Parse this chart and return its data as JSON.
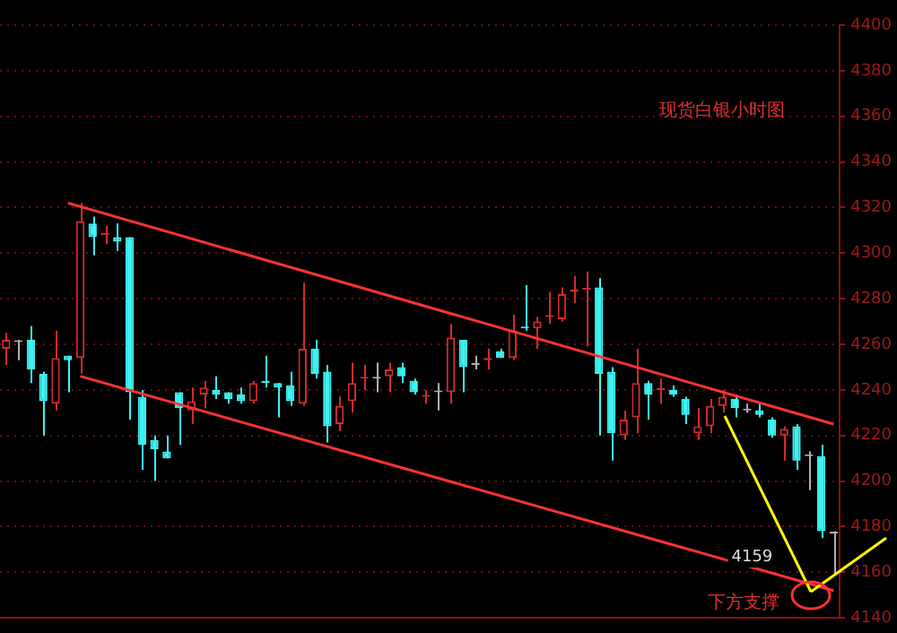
{
  "chart_data": {
    "type": "candlestick",
    "title": "现货白银小时图",
    "categories": [
      null,
      null,
      null,
      null,
      null,
      null,
      null,
      null,
      null,
      null,
      null,
      null,
      null,
      null,
      null,
      null,
      null,
      null,
      null,
      null,
      null,
      null,
      null,
      null,
      null,
      null,
      null,
      null,
      null,
      null,
      null,
      null,
      null,
      null,
      null,
      null,
      null,
      null,
      null,
      null,
      null,
      null,
      null,
      null,
      null,
      null,
      null,
      null,
      null,
      null,
      null,
      null,
      null,
      null,
      null,
      null,
      null,
      null,
      null,
      null,
      null,
      null,
      null,
      null,
      null,
      null,
      null,
      null
    ],
    "ohlc": [
      [
        4258,
        4265,
        4251,
        4262
      ],
      [
        4261,
        4262,
        4253,
        4261
      ],
      [
        4262,
        4268,
        4243,
        4249
      ],
      [
        4247,
        4248,
        4220,
        4235
      ],
      [
        4234,
        4266,
        4231,
        4254
      ],
      [
        4255,
        4255,
        4239,
        4253
      ],
      [
        4254,
        4322,
        4247,
        4314
      ],
      [
        4313,
        4316,
        4299,
        4307
      ],
      [
        4308,
        4312,
        4304,
        4308
      ],
      [
        4307,
        4313,
        4301,
        4305
      ],
      [
        4307,
        4307,
        4227,
        4239
      ],
      [
        4237,
        4240,
        4205,
        4216
      ],
      [
        4218,
        4220,
        4200,
        4214
      ],
      [
        4213,
        4220,
        4210,
        4210
      ],
      [
        4239,
        4239,
        4216,
        4232
      ],
      [
        4231,
        4241,
        4225,
        4235
      ],
      [
        4238,
        4244,
        4232,
        4241
      ],
      [
        4240,
        4246,
        4236,
        4238
      ],
      [
        4239,
        4239,
        4234,
        4236
      ],
      [
        4238,
        4241,
        4234,
        4235
      ],
      [
        4235,
        4244,
        4234,
        4243
      ],
      [
        4244,
        4255,
        4241,
        4243
      ],
      [
        4243,
        4243,
        4228,
        4241
      ],
      [
        4242,
        4248,
        4233,
        4235
      ],
      [
        4234,
        4287,
        4233,
        4258
      ],
      [
        4258,
        4262,
        4245,
        4247
      ],
      [
        4248,
        4251,
        4217,
        4224
      ],
      [
        4225,
        4237,
        4222,
        4233
      ],
      [
        4235,
        4252,
        4230,
        4243
      ],
      [
        4245,
        4251,
        4240,
        4245
      ],
      [
        4245,
        4252,
        4239,
        4245
      ],
      [
        4246,
        4252,
        4239,
        4249
      ],
      [
        4250,
        4252,
        4243,
        4246
      ],
      [
        4244,
        4245,
        4238,
        4239
      ],
      [
        4237,
        4240,
        4234,
        4237
      ],
      [
        4239,
        4243,
        4231,
        4239
      ],
      [
        4239,
        4269,
        4234,
        4263
      ],
      [
        4262,
        4262,
        4239,
        4250
      ],
      [
        4251,
        4255,
        4249,
        4251
      ],
      [
        4253,
        4258,
        4249,
        4254
      ],
      [
        4257,
        4258,
        4254,
        4254
      ],
      [
        4254,
        4273,
        4253,
        4266
      ],
      [
        4267,
        4286,
        4266,
        4267
      ],
      [
        4267,
        4272,
        4258,
        4270
      ],
      [
        4272,
        4283,
        4269,
        4272
      ],
      [
        4271,
        4285,
        4270,
        4282
      ],
      [
        4283,
        4290,
        4278,
        4284
      ],
      [
        4284,
        4292,
        4259,
        4284
      ],
      [
        4285,
        4289,
        4220,
        4247
      ],
      [
        4248,
        4250,
        4209,
        4221
      ],
      [
        4220,
        4231,
        4218,
        4227
      ],
      [
        4228,
        4258,
        4221,
        4243
      ],
      [
        4243,
        4244,
        4227,
        4238
      ],
      [
        4240,
        4245,
        4234,
        4240
      ],
      [
        4240,
        4242,
        4237,
        4238
      ],
      [
        4236,
        4237,
        4225,
        4229
      ],
      [
        4221,
        4232,
        4218,
        4224
      ],
      [
        4224,
        4236,
        4221,
        4233
      ],
      [
        4233,
        4240,
        4230,
        4237
      ],
      [
        4236,
        4238,
        4228,
        4232
      ],
      [
        4231,
        4234,
        4230,
        4231
      ],
      [
        4231,
        4234,
        4228,
        4229
      ],
      [
        4227,
        4228,
        4219,
        4220
      ],
      [
        4220,
        4224,
        4209,
        4223
      ],
      [
        4224,
        4225,
        4205,
        4209
      ],
      [
        4211,
        4213,
        4196,
        4211
      ],
      [
        4211,
        4216,
        4175,
        4178
      ],
      [
        4177,
        4178,
        4159,
        4177
      ]
    ],
    "colors": [
      "#d42a2a",
      "#b0b0b0",
      "#3ef2f2",
      "#3ef2f2",
      "#d42a2a",
      "#3ef2f2",
      "#d42a2a",
      "#3ef2f2",
      "#d42a2a",
      "#3ef2f2",
      "#3ef2f2",
      "#3ef2f2",
      "#3ef2f2",
      "#3ef2f2",
      "#3ef2f2",
      "#d42a2a",
      "#d42a2a",
      "#3ef2f2",
      "#3ef2f2",
      "#3ef2f2",
      "#d42a2a",
      "#3ef2f2",
      "#3ef2f2",
      "#3ef2f2",
      "#d42a2a",
      "#3ef2f2",
      "#3ef2f2",
      "#d42a2a",
      "#d42a2a",
      "#d42a2a",
      "#b0b0b0",
      "#d42a2a",
      "#3ef2f2",
      "#3ef2f2",
      "#d42a2a",
      "#b0b0b0",
      "#d42a2a",
      "#3ef2f2",
      "#b0b0b0",
      "#d42a2a",
      "#3ef2f2",
      "#d42a2a",
      "#3ef2f2",
      "#d42a2a",
      "#d42a2a",
      "#d42a2a",
      "#d42a2a",
      "#d42a2a",
      "#3ef2f2",
      "#3ef2f2",
      "#d42a2a",
      "#d42a2a",
      "#3ef2f2",
      "#d42a2a",
      "#3ef2f2",
      "#3ef2f2",
      "#d42a2a",
      "#d42a2a",
      "#d42a2a",
      "#3ef2f2",
      "#b0b0b0",
      "#3ef2f2",
      "#3ef2f2",
      "#d42a2a",
      "#3ef2f2",
      "#b0b0b0",
      "#3ef2f2",
      "#b0b0b0"
    ],
    "series": [
      {
        "type": "line",
        "color": "#ff3333",
        "values": [
          null,
          null,
          null,
          null,
          null,
          4322,
          null,
          null,
          null,
          null,
          null,
          null,
          null,
          null,
          null,
          null,
          null,
          null,
          null,
          null,
          null,
          null,
          null,
          null,
          null,
          null,
          null,
          null,
          null,
          null,
          null,
          null,
          null,
          null,
          null,
          null,
          null,
          null,
          null,
          null,
          null,
          null,
          null,
          null,
          null,
          null,
          null,
          null,
          null,
          null,
          null,
          null,
          null,
          null,
          null,
          null,
          null,
          null,
          null,
          null,
          null,
          null,
          null,
          null,
          null,
          null,
          null,
          4225
        ]
      },
      {
        "type": "line",
        "color": "#ff3333",
        "values": [
          null,
          null,
          null,
          null,
          null,
          null,
          4246,
          null,
          null,
          null,
          null,
          null,
          null,
          null,
          null,
          null,
          null,
          null,
          null,
          null,
          null,
          null,
          null,
          null,
          null,
          null,
          null,
          null,
          null,
          null,
          null,
          null,
          null,
          null,
          null,
          null,
          null,
          null,
          null,
          null,
          null,
          null,
          null,
          null,
          null,
          null,
          null,
          null,
          null,
          null,
          null,
          null,
          null,
          null,
          null,
          null,
          null,
          null,
          null,
          null,
          null,
          null,
          null,
          null,
          null,
          null,
          null,
          4152
        ]
      }
    ],
    "ylim": [
      4140,
      4400
    ],
    "yticks": [
      4140,
      4160,
      4180,
      4200,
      4220,
      4240,
      4260,
      4280,
      4300,
      4320,
      4340,
      4360,
      4380,
      4400
    ],
    "grid": "y",
    "tick_labels": "y",
    "annotations": [
      {
        "text": "4159",
        "y": 4159
      },
      "下方支撑"
    ]
  }
}
